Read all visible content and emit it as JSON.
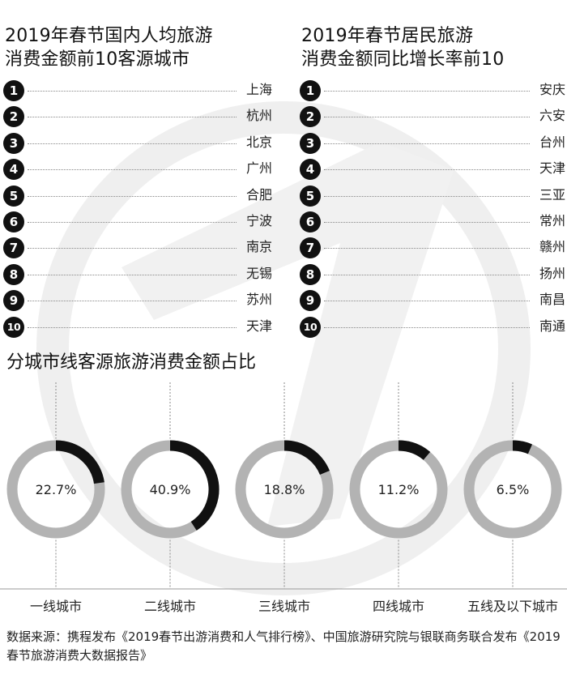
{
  "left_panel": {
    "title": "2019年春节国内人均旅游\n消费金额前10客源城市",
    "items": [
      {
        "rank": "1",
        "city": "上海"
      },
      {
        "rank": "2",
        "city": "杭州"
      },
      {
        "rank": "3",
        "city": "北京"
      },
      {
        "rank": "4",
        "city": "广州"
      },
      {
        "rank": "5",
        "city": "合肥"
      },
      {
        "rank": "6",
        "city": "宁波"
      },
      {
        "rank": "7",
        "city": "南京"
      },
      {
        "rank": "8",
        "city": "无锡"
      },
      {
        "rank": "9",
        "city": "苏州"
      },
      {
        "rank": "10",
        "city": "天津"
      }
    ]
  },
  "right_panel": {
    "title": "2019年春节居民旅游\n消费金额同比增长率前10",
    "items": [
      {
        "rank": "1",
        "city": "安庆"
      },
      {
        "rank": "2",
        "city": "六安"
      },
      {
        "rank": "3",
        "city": "台州"
      },
      {
        "rank": "4",
        "city": "天津"
      },
      {
        "rank": "5",
        "city": "三亚"
      },
      {
        "rank": "6",
        "city": "常州"
      },
      {
        "rank": "7",
        "city": "赣州"
      },
      {
        "rank": "8",
        "city": "扬州"
      },
      {
        "rank": "9",
        "city": "南昌"
      },
      {
        "rank": "10",
        "city": "南通"
      }
    ]
  },
  "chart_data": {
    "type": "pie",
    "title": "分城市线客源旅游消费金额占比",
    "categories": [
      "一线城市",
      "二线城市",
      "三线城市",
      "四线城市",
      "五线及以下城市"
    ],
    "values": [
      22.7,
      40.9,
      18.8,
      11.2,
      6.5
    ],
    "value_labels": [
      "22.7%",
      "40.9%",
      "18.8%",
      "11.2%",
      "6.5%"
    ],
    "unit": "%",
    "colors": {
      "filled": "#111111",
      "remainder": "#b3b3b3",
      "axis": "#9a9a9a"
    }
  },
  "source": "数据来源：携程发布《2019春节出游消费和人气排行榜》、中国旅游研究院与银联商务联合发布《2019春节旅游消费大数据报告》",
  "colors": {
    "text": "#111111",
    "watermark": "#eeeeee",
    "dots": "#888888"
  }
}
